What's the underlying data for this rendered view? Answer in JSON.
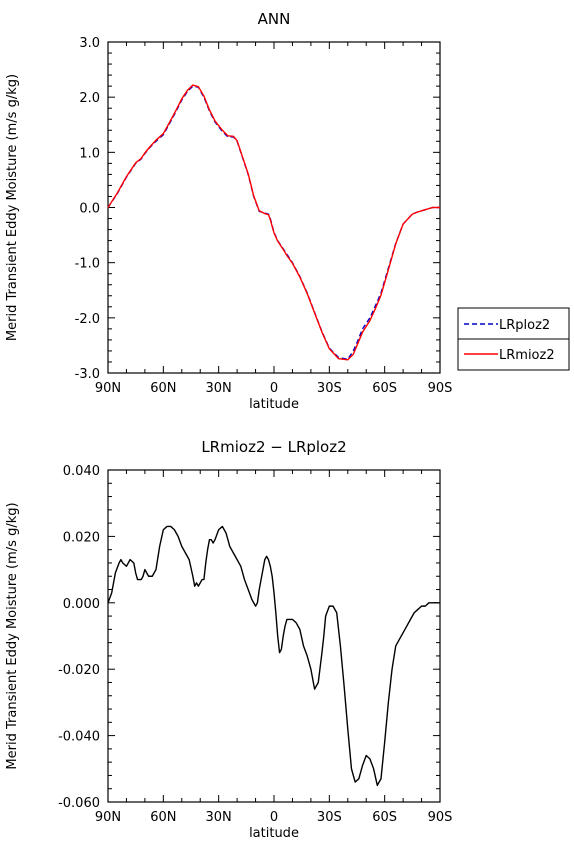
{
  "chart_data": [
    {
      "type": "line",
      "title": "ANN",
      "xlabel": "latitude",
      "ylabel": "Merid Transient Eddy Moisture (m/s g/kg)",
      "xlim": [
        90,
        -90
      ],
      "ylim": [
        -3.0,
        3.0
      ],
      "x_ticks": [
        90,
        60,
        30,
        0,
        -30,
        -60,
        -90
      ],
      "x_tick_labels": [
        "90N",
        "60N",
        "30N",
        "0",
        "30S",
        "60S",
        "90S"
      ],
      "y_ticks": [
        -3.0,
        -2.0,
        -1.0,
        0.0,
        1.0,
        2.0,
        3.0
      ],
      "y_tick_labels": [
        "-3.0",
        "-2.0",
        "-1.0",
        "0.0",
        "1.0",
        "2.0",
        "3.0"
      ],
      "legend_position": "right",
      "series": [
        {
          "name": "LRploz2",
          "color": "#0000cc",
          "dash": "dashed",
          "x": [
            90,
            85,
            80,
            75,
            72,
            70,
            67,
            64,
            60,
            57,
            53,
            50,
            47,
            44,
            41,
            38,
            35,
            32,
            28,
            25,
            22,
            20,
            17,
            14,
            11,
            8,
            5,
            3,
            2,
            0,
            -2,
            -5,
            -7,
            -10,
            -14,
            -18,
            -22,
            -26,
            -30,
            -35,
            -40,
            -43,
            -45,
            -48,
            -52,
            -55,
            -58,
            -62,
            -66,
            -70,
            -75,
            -78,
            -82,
            -86,
            -90
          ],
          "y": [
            0.0,
            0.25,
            0.55,
            0.8,
            0.88,
            0.98,
            1.1,
            1.2,
            1.32,
            1.5,
            1.75,
            1.95,
            2.1,
            2.2,
            2.18,
            2.0,
            1.75,
            1.55,
            1.38,
            1.28,
            1.28,
            1.2,
            0.9,
            0.6,
            0.2,
            -0.07,
            -0.1,
            -0.12,
            -0.2,
            -0.45,
            -0.6,
            -0.75,
            -0.85,
            -1.0,
            -1.25,
            -1.55,
            -1.9,
            -2.25,
            -2.55,
            -2.72,
            -2.75,
            -2.6,
            -2.45,
            -2.2,
            -2.0,
            -1.78,
            -1.55,
            -1.1,
            -0.65,
            -0.3,
            -0.12,
            -0.08,
            -0.04,
            0.0,
            0.0
          ]
        },
        {
          "name": "LRmioz2",
          "color": "#ff0000",
          "dash": "solid",
          "x": [
            90,
            85,
            80,
            75,
            72,
            70,
            67,
            64,
            60,
            57,
            53,
            50,
            47,
            44,
            41,
            38,
            35,
            32,
            28,
            25,
            22,
            20,
            17,
            14,
            11,
            8,
            5,
            3,
            2,
            0,
            -2,
            -5,
            -7,
            -10,
            -14,
            -18,
            -22,
            -26,
            -30,
            -35,
            -40,
            -43,
            -45,
            -48,
            -52,
            -55,
            -58,
            -62,
            -66,
            -70,
            -75,
            -78,
            -82,
            -86,
            -90
          ],
          "y": [
            0.0,
            0.26,
            0.56,
            0.81,
            0.89,
            0.99,
            1.11,
            1.22,
            1.34,
            1.52,
            1.77,
            1.97,
            2.12,
            2.22,
            2.19,
            2.02,
            1.77,
            1.57,
            1.4,
            1.3,
            1.29,
            1.21,
            0.91,
            0.61,
            0.21,
            -0.06,
            -0.11,
            -0.13,
            -0.22,
            -0.46,
            -0.61,
            -0.76,
            -0.87,
            -1.01,
            -1.26,
            -1.56,
            -1.91,
            -2.26,
            -2.56,
            -2.74,
            -2.76,
            -2.66,
            -2.5,
            -2.26,
            -2.05,
            -1.83,
            -1.59,
            -1.13,
            -0.66,
            -0.3,
            -0.12,
            -0.08,
            -0.04,
            0.0,
            0.0
          ]
        }
      ]
    },
    {
      "type": "line",
      "title": "LRmioz2 − LRploz2",
      "xlabel": "latitude",
      "ylabel": "Merid Transient Eddy Moisture (m/s g/kg)",
      "xlim": [
        90,
        -90
      ],
      "ylim": [
        -0.06,
        0.04
      ],
      "x_ticks": [
        90,
        60,
        30,
        0,
        -30,
        -60,
        -90
      ],
      "x_tick_labels": [
        "90N",
        "60N",
        "30N",
        "0",
        "30S",
        "60S",
        "90S"
      ],
      "y_ticks": [
        -0.06,
        -0.04,
        -0.02,
        0.0,
        0.02,
        0.04
      ],
      "y_tick_labels": [
        "-0.060",
        "-0.040",
        "-0.020",
        "0.000",
        "0.020",
        "0.040"
      ],
      "series": [
        {
          "name": "",
          "color": "#000000",
          "dash": "solid",
          "x": [
            90,
            88,
            86,
            84,
            83,
            82,
            80,
            79,
            78,
            76,
            75,
            74,
            72,
            71,
            70,
            68,
            66,
            64,
            62,
            60,
            58,
            56,
            54,
            52,
            50,
            48,
            46,
            44,
            43,
            42,
            41,
            40,
            39,
            38,
            37,
            36,
            35,
            34,
            33,
            32,
            30,
            28,
            27,
            26,
            25,
            24,
            22,
            20,
            18,
            16,
            14,
            12,
            10,
            9,
            8,
            6,
            5,
            4,
            3,
            2,
            1,
            0,
            -1,
            -2,
            -3,
            -4,
            -5,
            -6,
            -7,
            -8,
            -9,
            -10,
            -12,
            -14,
            -16,
            -18,
            -20,
            -22,
            -24,
            -26,
            -27,
            -28,
            -30,
            -32,
            -34,
            -36,
            -38,
            -40,
            -42,
            -44,
            -46,
            -48,
            -50,
            -52,
            -54,
            -56,
            -58,
            -60,
            -62,
            -64,
            -66,
            -68,
            -70,
            -72,
            -74,
            -76,
            -78,
            -80,
            -82,
            -84,
            -86,
            -88,
            -90
          ],
          "y": [
            0.0,
            0.003,
            0.009,
            0.012,
            0.013,
            0.012,
            0.011,
            0.012,
            0.013,
            0.012,
            0.009,
            0.007,
            0.007,
            0.008,
            0.01,
            0.008,
            0.008,
            0.01,
            0.017,
            0.022,
            0.023,
            0.023,
            0.022,
            0.02,
            0.017,
            0.015,
            0.013,
            0.008,
            0.005,
            0.006,
            0.005,
            0.006,
            0.007,
            0.007,
            0.012,
            0.016,
            0.019,
            0.019,
            0.018,
            0.019,
            0.022,
            0.023,
            0.022,
            0.021,
            0.019,
            0.017,
            0.015,
            0.013,
            0.011,
            0.007,
            0.004,
            0.001,
            -0.001,
            0.0,
            0.004,
            0.01,
            0.013,
            0.014,
            0.013,
            0.011,
            0.008,
            0.003,
            -0.003,
            -0.01,
            -0.015,
            -0.014,
            -0.01,
            -0.007,
            -0.005,
            -0.005,
            -0.005,
            -0.005,
            -0.006,
            -0.008,
            -0.013,
            -0.016,
            -0.02,
            -0.026,
            -0.024,
            -0.015,
            -0.01,
            -0.004,
            -0.001,
            -0.001,
            -0.003,
            -0.013,
            -0.025,
            -0.038,
            -0.05,
            -0.054,
            -0.053,
            -0.049,
            -0.046,
            -0.047,
            -0.05,
            -0.055,
            -0.053,
            -0.042,
            -0.03,
            -0.02,
            -0.013,
            -0.011,
            -0.009,
            -0.007,
            -0.005,
            -0.003,
            -0.002,
            -0.001,
            -0.001,
            0.0,
            0.0,
            0.0,
            0.0
          ]
        }
      ]
    }
  ]
}
